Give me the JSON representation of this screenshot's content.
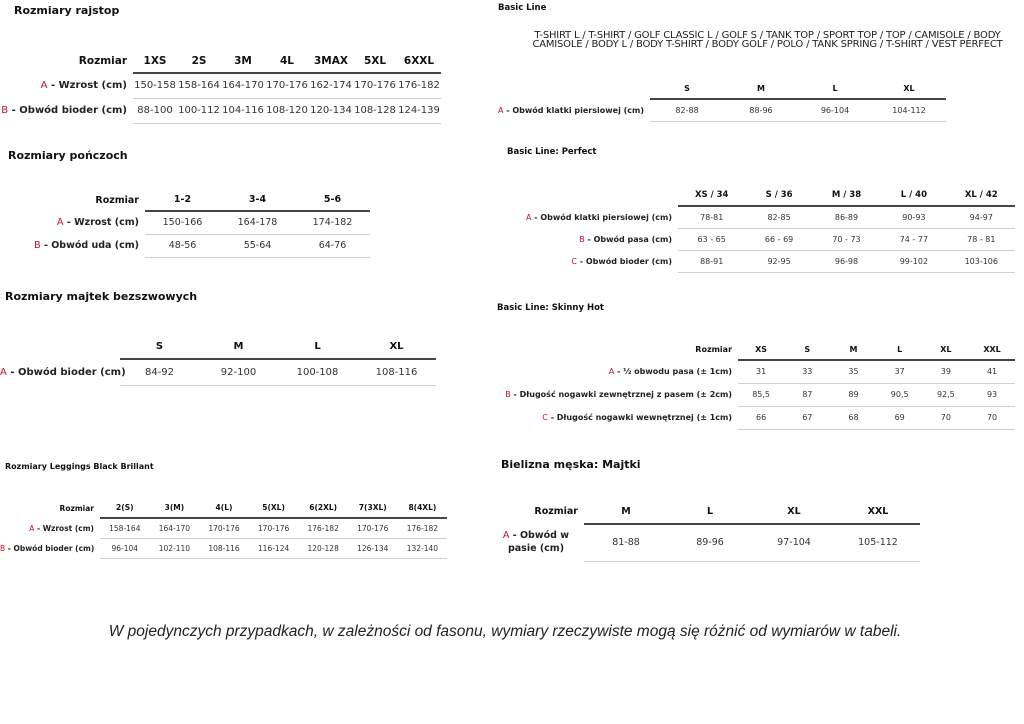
{
  "tables": {
    "rajstop": {
      "title": "Rozmiary rajstop",
      "header_label": "Rozmiar",
      "columns": [
        "1XS",
        "2S",
        "3M",
        "4L",
        "3MAX",
        "5XL",
        "6XXL"
      ],
      "rows": [
        {
          "letter": "A",
          "label": "- Wzrost (cm)",
          "values": [
            "150-158",
            "158-164",
            "164-170",
            "170-176",
            "162-174",
            "170-176",
            "176-182"
          ]
        },
        {
          "letter": "B",
          "label": "- Obwód bioder (cm)",
          "values": [
            "88-100",
            "100-112",
            "104-116",
            "108-120",
            "120-134",
            "108-128",
            "124-139"
          ]
        }
      ]
    },
    "ponczoch": {
      "title": "Rozmiary pończoch",
      "header_label": "Rozmiar",
      "columns": [
        "1-2",
        "3-4",
        "5-6"
      ],
      "rows": [
        {
          "letter": "A",
          "label": "- Wzrost (cm)",
          "values": [
            "150-166",
            "164-178",
            "174-182"
          ]
        },
        {
          "letter": "B",
          "label": "- Obwód uda (cm)",
          "values": [
            "48-56",
            "55-64",
            "64-76"
          ]
        }
      ]
    },
    "majtek": {
      "title": "Rozmiary majtek bezszwowych",
      "header_label": "",
      "columns": [
        "S",
        "M",
        "L",
        "XL"
      ],
      "rows": [
        {
          "letter": "A",
          "label": "- Obwód bioder (cm)",
          "values": [
            "84-92",
            "92-100",
            "100-108",
            "108-116"
          ]
        }
      ]
    },
    "leggings": {
      "title": "Rozmiary Leggings Black Brillant",
      "header_label": "Rozmiar",
      "columns": [
        "2(S)",
        "3(M)",
        "4(L)",
        "5(XL)",
        "6(2XL)",
        "7(3XL)",
        "8(4XL)"
      ],
      "rows": [
        {
          "letter": "A",
          "label": "- Wzrost (cm)",
          "values": [
            "158-164",
            "164-170",
            "170-176",
            "170-176",
            "176-182",
            "170-176",
            "176-182"
          ]
        },
        {
          "letter": "B",
          "label": "- Obwód bioder (cm)",
          "values": [
            "96-104",
            "102-110",
            "108-116",
            "116-124",
            "120-128",
            "126-134",
            "132-140"
          ]
        }
      ]
    },
    "basic": {
      "title": "Basic Line",
      "products": [
        "T-SHIRT L / T-SHIRT / GOLF CLASSIC L / GOLF S / TANK TOP / SPORT TOP / TOP / CAMISOLE / BODY",
        "CAMISOLE / BODY L / BODY T-SHIRT / BODY GOLF / POLO / TANK SPRING / T-SHIRT / VEST PERFECT"
      ],
      "header_label": "",
      "columns": [
        "S",
        "M",
        "L",
        "XL"
      ],
      "rows": [
        {
          "letter": "A",
          "label": "- Obwód klatki piersiowej (cm)",
          "values": [
            "82-88",
            "88-96",
            "96-104",
            "104-112"
          ]
        }
      ]
    },
    "perfect": {
      "title": "Basic Line: Perfect",
      "header_label": "",
      "columns": [
        "XS / 34",
        "S / 36",
        "M / 38",
        "L / 40",
        "XL / 42"
      ],
      "rows": [
        {
          "letter": "A",
          "label": "- Obwód klatki piersiowej (cm)",
          "values": [
            "78-81",
            "82-85",
            "86-89",
            "90-93",
            "94-97"
          ]
        },
        {
          "letter": "B",
          "label": "- Obwód pasa (cm)",
          "values": [
            "63 - 65",
            "66 - 69",
            "70 - 73",
            "74 - 77",
            "78 - 81"
          ]
        },
        {
          "letter": "C",
          "label": "- Obwód bioder (cm)",
          "values": [
            "88-91",
            "92-95",
            "96-98",
            "99-102",
            "103-106"
          ]
        }
      ]
    },
    "skinny": {
      "title": "Basic Line: Skinny Hot",
      "header_label": "Rozmiar",
      "columns": [
        "XS",
        "S",
        "M",
        "L",
        "XL",
        "XXL"
      ],
      "rows": [
        {
          "letter": "A",
          "label": "- ½ obwodu pasa (± 1cm)",
          "values": [
            "31",
            "33",
            "35",
            "37",
            "39",
            "41"
          ]
        },
        {
          "letter": "B",
          "label": "- Długość nogawki zewnętrznej z pasem (± 2cm)",
          "values": [
            "85,5",
            "87",
            "89",
            "90,5",
            "92,5",
            "93"
          ]
        },
        {
          "letter": "C",
          "label": "- Długość nogawki wewnętrznej (± 1cm)",
          "values": [
            "66",
            "67",
            "68",
            "69",
            "70",
            "70"
          ]
        }
      ]
    },
    "majtki": {
      "title": "Bielizna męska: Majtki",
      "header_label": "Rozmiar",
      "columns": [
        "M",
        "L",
        "XL",
        "XXL"
      ],
      "rows": [
        {
          "letter": "A",
          "label": "- Obwód w pasie (cm)",
          "values": [
            "81-88",
            "89-96",
            "97-104",
            "105-112"
          ]
        }
      ]
    }
  },
  "footer": "W pojedynczych przypadkach, w zależności od fasonu, wymiary rzeczywiste mogą się różnić od wymiarów w tabeli.",
  "colors": {
    "accent_letter": "#c0122c",
    "header_rule": "#444444",
    "row_rule": "#cfcfcf"
  }
}
